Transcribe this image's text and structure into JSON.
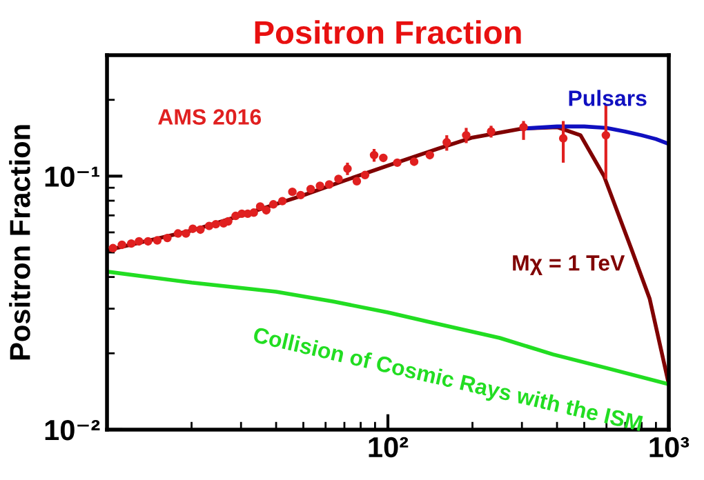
{
  "chart_data": {
    "type": "line",
    "title": "Positron Fraction",
    "ylabel": "Positron Fraction",
    "log": "xy",
    "xlim": [
      10,
      1000
    ],
    "ylim": [
      0.01,
      0.3
    ],
    "xticks": [
      {
        "value": 100,
        "label": "10²"
      },
      {
        "value": 1000,
        "label": "10³"
      }
    ],
    "yticks": [
      {
        "value": 0.01,
        "label": "10⁻²"
      },
      {
        "value": 0.1,
        "label": "10⁻¹"
      }
    ],
    "grid": false,
    "legend": false,
    "series": [
      {
        "name": "AMS 2016",
        "type": "scatter",
        "marker": "circle",
        "color": "#e02020",
        "x": [
          10.5,
          11.3,
          12.2,
          13.0,
          14.0,
          15.1,
          16.4,
          17.9,
          19.1,
          20.2,
          21.5,
          23.1,
          24.4,
          26.0,
          27.0,
          28.7,
          30.2,
          31.7,
          33.3,
          35.1,
          36.9,
          39.1,
          42.1,
          45.7,
          48.9,
          53.1,
          57.3,
          61.8,
          66.7,
          71.8,
          77.5,
          82.9,
          89.3,
          96.3,
          108,
          124,
          141,
          162,
          190,
          233,
          304,
          421,
          597
        ],
        "values": [
          0.052,
          0.0536,
          0.0542,
          0.0553,
          0.0553,
          0.0558,
          0.057,
          0.0594,
          0.0594,
          0.062,
          0.0615,
          0.0636,
          0.0646,
          0.0651,
          0.0663,
          0.0697,
          0.0711,
          0.0711,
          0.0718,
          0.0759,
          0.0733,
          0.0774,
          0.0797,
          0.0867,
          0.0842,
          0.0889,
          0.0916,
          0.0927,
          0.0975,
          0.107,
          0.0955,
          0.101,
          0.121,
          0.118,
          0.113,
          0.114,
          0.121,
          0.136,
          0.145,
          0.15,
          0.156,
          0.141,
          0.145
        ],
        "errors": [
          null,
          null,
          null,
          null,
          null,
          null,
          null,
          null,
          null,
          null,
          null,
          null,
          null,
          null,
          null,
          null,
          null,
          null,
          null,
          null,
          null,
          null,
          null,
          null,
          null,
          null,
          null,
          null,
          null,
          [
            0.101,
            0.113
          ],
          null,
          null,
          [
            0.114,
            0.128
          ],
          null,
          null,
          null,
          null,
          [
            0.126,
            0.145
          ],
          [
            0.135,
            0.155
          ],
          [
            0.142,
            0.158
          ],
          [
            0.139,
            0.165
          ],
          [
            0.113,
            0.165
          ],
          [
            0.0975,
            0.191
          ]
        ]
      },
      {
        "name": "Pulsars",
        "color": "#1010c0",
        "x": [
          300,
          400,
          500,
          600,
          700,
          800,
          900,
          1000
        ],
        "values": [
          0.154,
          0.157,
          0.157,
          0.155,
          0.15,
          0.145,
          0.14,
          0.134
        ]
      },
      {
        "name": "Mχ = 1 TeV",
        "color": "#800000",
        "x": [
          10,
          20,
          30,
          50,
          70,
          100,
          150,
          200,
          300,
          400,
          485,
          588,
          734,
          855,
          1000
        ],
        "values": [
          0.051,
          0.061,
          0.07,
          0.084,
          0.096,
          0.11,
          0.128,
          0.142,
          0.154,
          0.156,
          0.145,
          0.1,
          0.052,
          0.0328,
          0.0151
        ]
      },
      {
        "name": "Collision of Cosmic Rays with the ISM",
        "color": "#22dd22",
        "x": [
          10,
          20,
          40,
          64,
          100,
          140,
          250,
          387,
          600,
          1000
        ],
        "values": [
          0.042,
          0.038,
          0.035,
          0.032,
          0.029,
          0.0266,
          0.023,
          0.0198,
          0.0175,
          0.0151
        ]
      }
    ]
  }
}
